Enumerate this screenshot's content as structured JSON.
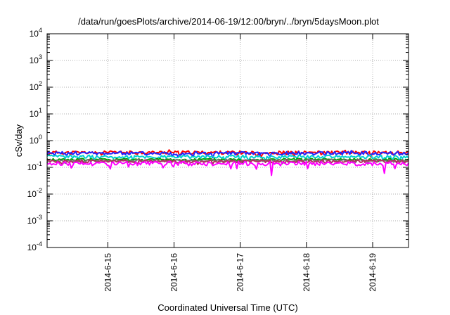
{
  "chart_data": {
    "type": "line",
    "title": "/data/run/goesPlots/archive/2014-06-19/12:00/bryn/../bryn/5daysMoon.plot",
    "xlabel": "Coordinated Universal Time (UTC)",
    "ylabel": "cSv/day",
    "yscale": "log",
    "ylim": [
      0.0001,
      10000
    ],
    "xlim": [
      "2014-06-14 02:00",
      "2014-06-19 13:00"
    ],
    "grid": true,
    "x_ticks": [
      {
        "value": "2014-06-15 00:00",
        "label": "2014-6-15"
      },
      {
        "value": "2014-06-16 00:00",
        "label": "2014-6-16"
      },
      {
        "value": "2014-06-17 00:00",
        "label": "2014-6-17"
      },
      {
        "value": "2014-06-18 00:00",
        "label": "2014-6-18"
      },
      {
        "value": "2014-06-19 00:00",
        "label": "2014-6-19"
      }
    ],
    "y_ticks": [
      {
        "value": 0.0001,
        "base": "10",
        "exp": "-4"
      },
      {
        "value": 0.001,
        "base": "10",
        "exp": "-3"
      },
      {
        "value": 0.01,
        "base": "10",
        "exp": "-2"
      },
      {
        "value": 0.1,
        "base": "10",
        "exp": "-1"
      },
      {
        "value": 1,
        "base": "10",
        "exp": "0"
      },
      {
        "value": 10,
        "base": "10",
        "exp": "1"
      },
      {
        "value": 100,
        "base": "10",
        "exp": "2"
      },
      {
        "value": 1000,
        "base": "10",
        "exp": "3"
      },
      {
        "value": 10000,
        "base": "10",
        "exp": "4"
      }
    ],
    "series": [
      {
        "color": "#ff0000",
        "level": 0.36,
        "noise": 0.05,
        "seed": 11,
        "spikes": [
          [
            "2014-06-15 22:00",
            0.45
          ],
          [
            "2014-06-17 06:00",
            0.27
          ],
          [
            "2014-06-18 14:00",
            0.43
          ]
        ]
      },
      {
        "color": "#2222ff",
        "level": 0.34,
        "noise": 0.05,
        "seed": 23,
        "spikes": [
          [
            "2014-06-16 12:00",
            0.26
          ],
          [
            "2014-06-17 11:00",
            0.24
          ],
          [
            "2014-06-18 16:00",
            0.42
          ]
        ]
      },
      {
        "color": "#00d0d0",
        "level": 0.25,
        "noise": 0.035,
        "seed": 37,
        "spikes": []
      },
      {
        "color": "#00a000",
        "level": 0.195,
        "noise": 0.02,
        "seed": 41,
        "spikes": []
      },
      {
        "color": "#777777",
        "level": 0.18,
        "noise": 0.02,
        "seed": 53,
        "spikes": []
      },
      {
        "color": "#b03060",
        "level": 0.17,
        "noise": 0.02,
        "seed": 67,
        "spikes": []
      },
      {
        "color": "#ff00ff",
        "level": 0.14,
        "noise": 0.025,
        "seed": 79,
        "spikes": [
          [
            "2014-06-14 11:00",
            0.095
          ],
          [
            "2014-06-16 23:00",
            0.09
          ],
          [
            "2014-06-17 11:30",
            0.05
          ],
          [
            "2014-06-18 00:30",
            0.09
          ],
          [
            "2014-06-19 04:00",
            0.06
          ],
          [
            "2014-06-19 08:00",
            0.09
          ]
        ]
      }
    ]
  }
}
